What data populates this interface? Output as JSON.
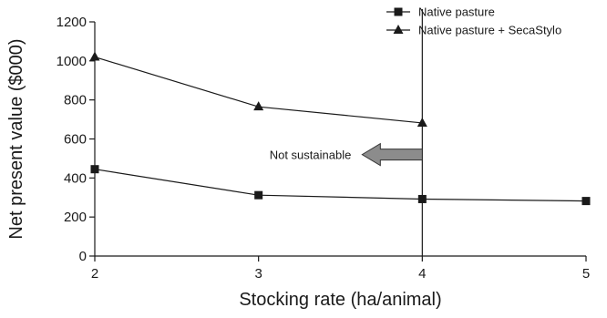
{
  "chart_data": {
    "type": "line",
    "title": "",
    "xlabel": "Stocking rate (ha/animal)",
    "ylabel": "Net present value ($000)",
    "xlim": [
      2,
      5
    ],
    "ylim": [
      0,
      1200
    ],
    "x_ticks": [
      "2",
      "3",
      "4",
      "5"
    ],
    "y_ticks": [
      "0",
      "200",
      "400",
      "600",
      "800",
      "1000",
      "1200"
    ],
    "grid": false,
    "legend_position": "top-right",
    "series": [
      {
        "name": "Native pasture",
        "marker": "square",
        "color": "#1a1a1a",
        "x": [
          2,
          3,
          4,
          5
        ],
        "y": [
          445,
          312,
          292,
          282
        ]
      },
      {
        "name": "Native pasture + SecaStylo",
        "marker": "triangle",
        "color": "#1a1a1a",
        "x": [
          2,
          3,
          4
        ],
        "y": [
          1020,
          765,
          682
        ]
      }
    ],
    "annotations": {
      "vertical_line_x": 4,
      "arrow_text": "Not sustainable",
      "arrow_direction": "left",
      "arrow_y": 520,
      "arrow_color": "#8c8c8c"
    }
  }
}
